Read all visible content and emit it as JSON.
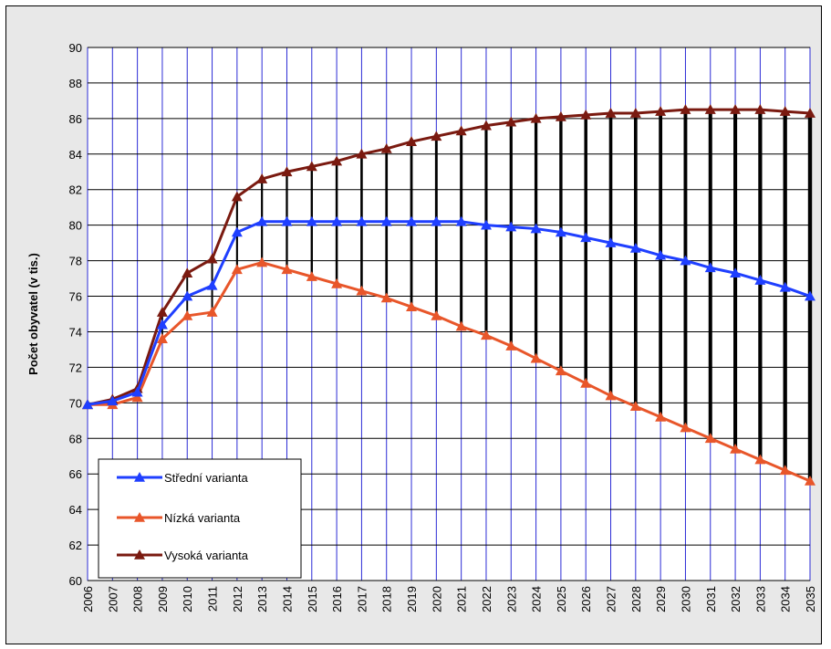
{
  "chart_data": {
    "type": "line",
    "title": "",
    "xlabel": "",
    "ylabel": "Počet obyvatel (v tis.)",
    "ylim": [
      60,
      90
    ],
    "yticks": [
      "60",
      "62",
      "64",
      "66",
      "68",
      "70",
      "72",
      "74",
      "76",
      "78",
      "80",
      "82",
      "84",
      "86",
      "88",
      "90"
    ],
    "categories": [
      "2006",
      "2007",
      "2008",
      "2009",
      "2010",
      "2011",
      "2012",
      "2013",
      "2014",
      "2015",
      "2016",
      "2017",
      "2018",
      "2019",
      "2020",
      "2021",
      "2022",
      "2023",
      "2024",
      "2025",
      "2026",
      "2027",
      "2028",
      "2029",
      "2030",
      "2031",
      "2032",
      "2033",
      "2034",
      "2035"
    ],
    "grid": true,
    "legend_position": "bottom-left",
    "range_bars": "vertical black bars spanning Nízká to Vysoká variant each year",
    "series": [
      {
        "name": "Střední varianta",
        "color": "#1f3fff",
        "values": [
          69.9,
          70.1,
          70.6,
          74.4,
          76.0,
          76.6,
          79.6,
          80.2,
          80.2,
          80.2,
          80.2,
          80.2,
          80.2,
          80.2,
          80.2,
          80.2,
          80.0,
          79.9,
          79.8,
          79.6,
          79.3,
          79.0,
          78.7,
          78.3,
          78.0,
          77.6,
          77.3,
          76.9,
          76.5,
          76.0
        ]
      },
      {
        "name": "Nízká varianta",
        "color": "#e8562a",
        "values": [
          69.9,
          69.9,
          70.3,
          73.6,
          74.9,
          75.1,
          77.5,
          77.9,
          77.5,
          77.1,
          76.7,
          76.3,
          75.9,
          75.4,
          74.9,
          74.3,
          73.8,
          73.2,
          72.5,
          71.8,
          71.1,
          70.4,
          69.8,
          69.2,
          68.6,
          68.0,
          67.4,
          66.8,
          66.2,
          65.6
        ]
      },
      {
        "name": "Vysoká varianta",
        "color": "#7a1a10",
        "values": [
          69.9,
          70.2,
          70.8,
          75.1,
          77.3,
          78.1,
          81.6,
          82.6,
          83.0,
          83.3,
          83.6,
          84.0,
          84.3,
          84.7,
          85.0,
          85.3,
          85.6,
          85.8,
          86.0,
          86.1,
          86.2,
          86.3,
          86.3,
          86.4,
          86.5,
          86.5,
          86.5,
          86.5,
          86.4,
          86.3
        ]
      }
    ]
  }
}
